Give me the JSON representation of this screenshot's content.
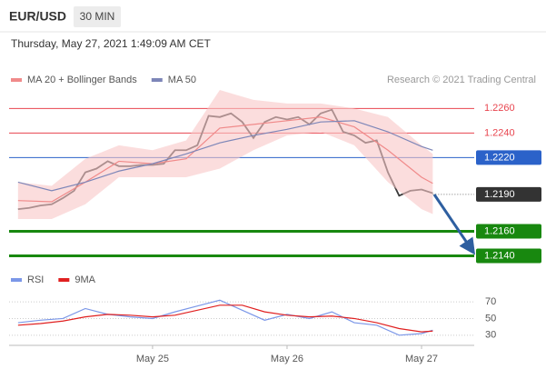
{
  "header": {
    "symbol": "EUR/USD",
    "interval": "30 MIN",
    "timestamp": "Thursday, May 27, 2021 1:49:09 AM CET"
  },
  "chart_data": [
    {
      "type": "line",
      "source": "Research © 2021 Trading Central",
      "xlim": [
        -1.6,
        81.4
      ],
      "ylim": [
        1.213,
        1.2278
      ],
      "series": [
        {
          "color": "#3a3a3a",
          "x": [
            0,
            2,
            4,
            6,
            8,
            10,
            12,
            14,
            16,
            18,
            20,
            22,
            24,
            26,
            28,
            30,
            32,
            34,
            36,
            38,
            40,
            42,
            44,
            46,
            48,
            50,
            52,
            54,
            56,
            58,
            60,
            62,
            64,
            66,
            68,
            70,
            72,
            74
          ],
          "values": [
            1.2178,
            1.2179,
            1.2181,
            1.2182,
            1.2187,
            1.2193,
            1.2208,
            1.2211,
            1.2217,
            1.2213,
            1.2213,
            1.2214,
            1.2214,
            1.2215,
            1.2226,
            1.2226,
            1.223,
            1.2254,
            1.2253,
            1.2256,
            1.2249,
            1.2236,
            1.2249,
            1.2253,
            1.2251,
            1.2253,
            1.2247,
            1.2256,
            1.2259,
            1.2241,
            1.2238,
            1.2232,
            1.2234,
            1.2208,
            1.2189,
            1.2193,
            1.2194,
            1.2191
          ]
        },
        {
          "name": "MA 20 + Bollinger Bands",
          "color": "#f08a8a",
          "x": [
            0,
            6,
            12,
            18,
            24,
            30,
            36,
            42,
            48,
            54,
            60,
            66,
            72,
            74
          ],
          "values": [
            1.2185,
            1.2184,
            1.22,
            1.2217,
            1.2215,
            1.2219,
            1.2244,
            1.2247,
            1.225,
            1.2253,
            1.2245,
            1.2226,
            1.2204,
            1.2199
          ],
          "upper": [
            1.22,
            1.2197,
            1.2219,
            1.223,
            1.2226,
            1.2234,
            1.2275,
            1.2267,
            1.2264,
            1.2264,
            1.226,
            1.2253,
            1.223,
            1.2223
          ],
          "lower": [
            1.217,
            1.217,
            1.2182,
            1.2204,
            1.2204,
            1.2204,
            1.2211,
            1.2226,
            1.2238,
            1.2241,
            1.223,
            1.22,
            1.2178,
            1.2174
          ]
        },
        {
          "name": "MA 50",
          "color": "#7d86b8",
          "x": [
            0,
            6,
            12,
            18,
            24,
            30,
            36,
            42,
            48,
            54,
            60,
            66,
            72,
            74
          ],
          "values": [
            1.22,
            1.2193,
            1.22,
            1.2209,
            1.2215,
            1.2223,
            1.2232,
            1.2238,
            1.2243,
            1.2249,
            1.225,
            1.2241,
            1.2229,
            1.2226
          ]
        }
      ],
      "levels": [
        {
          "value": 1.226,
          "label": "1.2260",
          "color": "#e8454f",
          "style": "thin",
          "box": false
        },
        {
          "value": 1.224,
          "label": "1.2240",
          "color": "#e8454f",
          "style": "thin",
          "box": false
        },
        {
          "value": 1.222,
          "label": "1.2220",
          "color": "#2b62c9",
          "style": "thin",
          "box": true
        },
        {
          "value": 1.219,
          "label": "1.2190",
          "color": "#333333",
          "style": "dotted",
          "box": true
        },
        {
          "value": 1.216,
          "label": "1.2160",
          "color": "#18880f",
          "style": "thick",
          "box": true
        },
        {
          "value": 1.214,
          "label": "1.2140",
          "color": "#18880f",
          "style": "thick",
          "box": true
        }
      ]
    },
    {
      "type": "line",
      "xlim": [
        -1.6,
        81.4
      ],
      "ylim": [
        20,
        105
      ],
      "xticks": [
        {
          "value": 24,
          "label": "May 25"
        },
        {
          "value": 48,
          "label": "May 26"
        },
        {
          "value": 72,
          "label": "May 27"
        }
      ],
      "yticks": [
        30,
        50,
        70
      ],
      "series": [
        {
          "name": "RSI",
          "color": "#7b97e8",
          "x": [
            0,
            4,
            8,
            12,
            16,
            20,
            24,
            28,
            32,
            36,
            40,
            44,
            48,
            52,
            56,
            60,
            64,
            68,
            72,
            74
          ],
          "values": [
            45,
            48,
            50,
            62,
            55,
            52,
            50,
            58,
            65,
            72,
            60,
            48,
            55,
            50,
            58,
            45,
            42,
            30,
            32,
            36
          ]
        },
        {
          "name": "9MA",
          "color": "#e02020",
          "x": [
            0,
            4,
            8,
            12,
            16,
            20,
            24,
            28,
            32,
            36,
            40,
            44,
            48,
            52,
            56,
            60,
            64,
            68,
            72,
            74
          ],
          "values": [
            42,
            44,
            47,
            52,
            55,
            54,
            52,
            54,
            60,
            66,
            66,
            58,
            54,
            52,
            53,
            50,
            45,
            38,
            34,
            35
          ]
        }
      ]
    }
  ]
}
